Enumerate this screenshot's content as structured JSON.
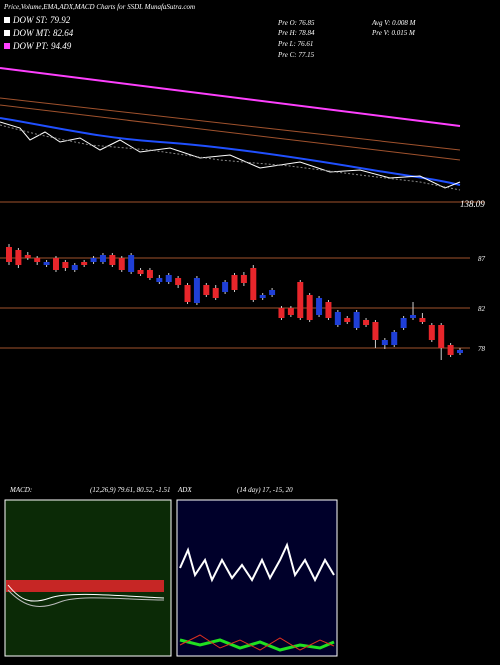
{
  "header": {
    "title": "Price,Volume,EMA,ADX,MACD Charts for SSDL MunafaSutra.com"
  },
  "legend": [
    {
      "label": "DOW ST: 79.92",
      "color": "#ffffff"
    },
    {
      "label": "DOW MT: 82.64",
      "color": "#ffffff"
    },
    {
      "label": "DOW PT: 94.49",
      "color": "#ff40ff"
    }
  ],
  "prev": [
    "Pre O: 76.85",
    "Pre H: 78.84",
    "Pre L: 76.61",
    "Pre C: 77.15"
  ],
  "volume": [
    "Avg V: 0.008 M",
    "Pre V: 0.015 M"
  ],
  "ema_panel": {
    "label": "138.09"
  },
  "chart_data": {
    "type": "candlestick",
    "ylim": [
      64.8,
      90.3
    ],
    "yticks": [
      87,
      82,
      78
    ],
    "up_color": "#1f3fd6",
    "down_color": "#e8262b",
    "open": [
      88.1,
      87.8,
      87.3,
      87.0,
      86.3,
      87.0,
      86.6,
      85.8,
      86.6,
      86.6,
      86.6,
      87.3,
      87.0,
      85.6,
      85.8,
      85.8,
      84.6,
      84.6,
      85.0,
      84.3,
      82.5,
      84.3,
      84.0,
      83.6,
      85.3,
      85.3,
      86.0,
      83.0,
      83.3,
      82.0,
      82.0,
      84.6,
      83.3,
      81.3,
      82.6,
      80.3,
      81.0,
      80.0,
      80.8,
      80.6,
      78.3,
      78.3,
      80.0,
      81.0,
      81.0,
      80.3,
      80.3,
      78.3,
      77.5
    ],
    "high": [
      88.4,
      88.0,
      87.6,
      87.2,
      86.8,
      87.2,
      86.8,
      86.5,
      86.8,
      87.2,
      87.5,
      87.5,
      87.2,
      87.5,
      86.0,
      86.0,
      85.3,
      85.5,
      85.2,
      84.5,
      85.2,
      84.5,
      84.3,
      84.8,
      85.5,
      85.6,
      86.3,
      83.5,
      84.0,
      82.2,
      82.2,
      84.8,
      83.5,
      83.2,
      82.8,
      81.8,
      81.2,
      81.8,
      81.0,
      80.8,
      79.0,
      79.8,
      81.2,
      82.6,
      81.5,
      80.5,
      80.5,
      78.5,
      78.0
    ],
    "low": [
      86.3,
      86.0,
      86.8,
      86.3,
      86.1,
      85.6,
      85.7,
      85.6,
      86.1,
      86.4,
      86.4,
      86.1,
      85.6,
      85.4,
      85.2,
      84.8,
      84.4,
      84.4,
      84.0,
      82.4,
      82.3,
      83.1,
      82.8,
      83.4,
      83.6,
      84.2,
      82.6,
      82.8,
      83.1,
      80.8,
      81.1,
      80.8,
      80.6,
      81.1,
      80.8,
      80.1,
      80.4,
      79.8,
      80.1,
      78.0,
      77.9,
      78.1,
      79.8,
      80.8,
      80.4,
      78.6,
      76.8,
      77.1,
      77.3
    ],
    "close": [
      86.6,
      86.3,
      87.0,
      86.6,
      86.6,
      85.8,
      86.0,
      86.3,
      86.3,
      87.0,
      87.3,
      86.3,
      85.8,
      87.3,
      85.4,
      85.0,
      85.0,
      85.3,
      84.3,
      82.6,
      85.0,
      83.3,
      83.0,
      84.6,
      83.8,
      84.5,
      82.8,
      83.3,
      83.8,
      81.0,
      81.3,
      81.0,
      80.8,
      83.0,
      81.0,
      81.6,
      80.6,
      81.6,
      80.3,
      78.8,
      78.8,
      79.6,
      81.0,
      81.3,
      80.6,
      78.8,
      78.0,
      77.3,
      77.8
    ]
  },
  "macd": {
    "label": "MACD:",
    "params": "(12,26,9) 79.61, 80.52, -1.51"
  },
  "adx": {
    "label": "ADX",
    "params": "(14 day) 17, -15, 20"
  }
}
